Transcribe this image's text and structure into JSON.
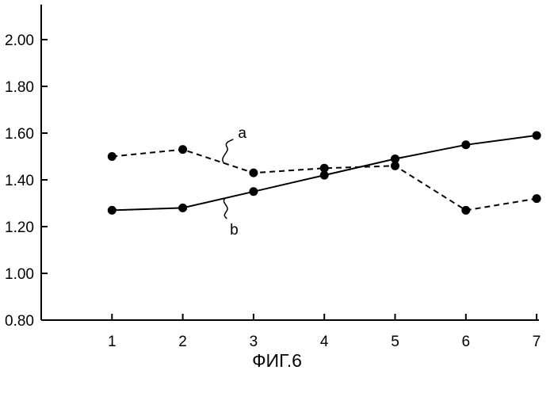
{
  "caption": "ФИГ.6",
  "chart_data": {
    "type": "line",
    "title": "",
    "xlabel": "",
    "ylabel": "",
    "x": [
      1,
      2,
      3,
      4,
      5,
      6,
      7
    ],
    "xlim": [
      0,
      7
    ],
    "ylim": [
      0.8,
      2.15
    ],
    "x_ticks": [
      "1",
      "2",
      "3",
      "4",
      "5",
      "6",
      "7"
    ],
    "y_ticks": [
      "0.80",
      "1.00",
      "1.20",
      "1.40",
      "1.60",
      "1.80",
      "2.00"
    ],
    "grid": false,
    "legend": "none",
    "series": [
      {
        "name": "a",
        "style": "dashed",
        "color": "#000000",
        "values": [
          1.5,
          1.53,
          1.43,
          1.45,
          1.46,
          1.27,
          1.32
        ]
      },
      {
        "name": "b",
        "style": "solid",
        "color": "#000000",
        "values": [
          1.27,
          1.28,
          1.35,
          1.42,
          1.49,
          1.55,
          1.59
        ]
      }
    ]
  }
}
